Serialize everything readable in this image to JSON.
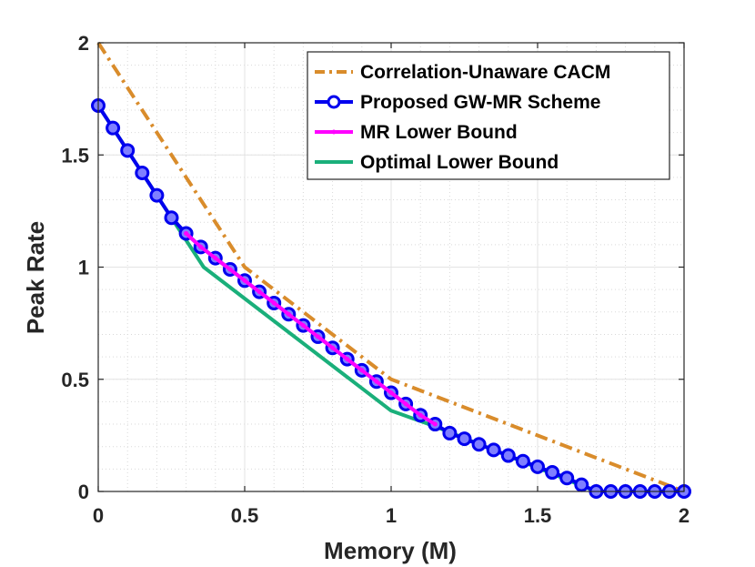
{
  "chart_data": {
    "type": "line",
    "title": "",
    "xlabel": "Memory (M)",
    "ylabel": "Peak Rate",
    "xlim": [
      0,
      2
    ],
    "ylim": [
      0,
      2
    ],
    "xticks": [
      0,
      0.5,
      1,
      1.5,
      2
    ],
    "xtick_labels": [
      "0",
      "0.5",
      "1",
      "1.5",
      "2"
    ],
    "yticks": [
      0,
      0.5,
      1,
      1.5,
      2
    ],
    "ytick_labels": [
      "0",
      "0.5",
      "1",
      "1.5",
      "2"
    ],
    "grid": true,
    "minor_grid": true,
    "legend_position": "top-right",
    "series": [
      {
        "name": "Correlation-Unaware CACM",
        "color": "#D98C2B",
        "style": "dash-dot",
        "marker": "none",
        "x": [
          0,
          0.5,
          1,
          2
        ],
        "y": [
          2,
          1,
          0.5,
          0
        ]
      },
      {
        "name": "Proposed GW-MR Scheme",
        "color": "#0000EE",
        "style": "solid",
        "marker": "circle",
        "x": [
          0,
          0.05,
          0.1,
          0.15,
          0.2,
          0.25,
          0.3,
          0.35,
          0.4,
          0.45,
          0.5,
          0.55,
          0.6,
          0.65,
          0.7,
          0.75,
          0.8,
          0.85,
          0.9,
          0.95,
          1,
          1.05,
          1.1,
          1.15,
          1.2,
          1.25,
          1.3,
          1.35,
          1.4,
          1.45,
          1.5,
          1.55,
          1.6,
          1.65,
          1.7,
          1.75,
          1.8,
          1.85,
          1.9,
          1.95,
          2
        ],
        "y": [
          1.72,
          1.62,
          1.52,
          1.42,
          1.32,
          1.22,
          1.15,
          1.09,
          1.04,
          0.99,
          0.94,
          0.89,
          0.84,
          0.79,
          0.74,
          0.69,
          0.64,
          0.59,
          0.54,
          0.49,
          0.44,
          0.39,
          0.34,
          0.3,
          0.26,
          0.235,
          0.21,
          0.185,
          0.16,
          0.135,
          0.11,
          0.085,
          0.06,
          0.03,
          0.0,
          0.0,
          0.0,
          0.0,
          0.0,
          0.0,
          0.0
        ]
      },
      {
        "name": "MR Lower Bound",
        "color": "#FF00FF",
        "style": "solid",
        "marker": "dot",
        "x": [
          0.3,
          0.35,
          0.4,
          0.45,
          0.5,
          0.55,
          0.6,
          0.65,
          0.7,
          0.75,
          0.8,
          0.85,
          0.9,
          0.95,
          1,
          1.05,
          1.1,
          1.15
        ],
        "y": [
          1.15,
          1.09,
          1.04,
          0.99,
          0.94,
          0.89,
          0.84,
          0.79,
          0.74,
          0.69,
          0.64,
          0.59,
          0.54,
          0.49,
          0.44,
          0.39,
          0.34,
          0.3
        ]
      },
      {
        "name": "Optimal Lower Bound",
        "color": "#1AAF7A",
        "style": "solid",
        "marker": "none",
        "x": [
          0,
          0.36,
          1,
          1.15,
          1.7,
          2
        ],
        "y": [
          1.72,
          1.0,
          0.36,
          0.29,
          0.0,
          0.0
        ]
      }
    ]
  }
}
